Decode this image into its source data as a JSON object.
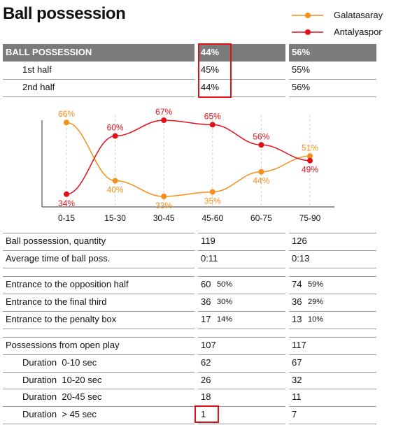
{
  "title": "Ball possession",
  "summary": {
    "header": [
      "BALL POSSESSION",
      "44%",
      "56%"
    ],
    "rows": [
      [
        "1st half",
        "45%",
        "55%"
      ],
      [
        "2nd half",
        "44%",
        "56%"
      ]
    ]
  },
  "chart_data": {
    "type": "line",
    "categories": [
      "0-15",
      "15-30",
      "30-45",
      "45-60",
      "60-75",
      "75-90"
    ],
    "series": [
      {
        "name": "Galatasaray",
        "color": "#f39019",
        "values": [
          66,
          40,
          33,
          35,
          44,
          51
        ],
        "value_labels": [
          "66%",
          "40%",
          "33%",
          "35%",
          "44%",
          "51%"
        ]
      },
      {
        "name": "Antalyaspor",
        "color": "#e3101a",
        "values": [
          34,
          60,
          67,
          65,
          56,
          49
        ],
        "value_labels": [
          "34%",
          "60%",
          "67%",
          "65%",
          "56%",
          "49%"
        ]
      }
    ]
  },
  "stats": {
    "groups": [
      {
        "rows": [
          [
            "Ball possession, quantity",
            "119",
            "126"
          ],
          [
            "Average time of ball poss.",
            "0:11",
            "0:13"
          ]
        ]
      },
      {
        "rows": [
          [
            "Entrance to the opposition half",
            "60",
            "50%",
            "74",
            "59%"
          ],
          [
            "Entrance to the final third",
            "36",
            "30%",
            "36",
            "29%"
          ],
          [
            "Entrance to the penalty box",
            "17",
            "14%",
            "13",
            "10%"
          ]
        ]
      },
      {
        "rows": [
          [
            "Possessions from open play",
            "107",
            "117"
          ],
          [
            "Duration  0-10 sec",
            "62",
            "67"
          ],
          [
            "Duration  10-20 sec",
            "26",
            "32"
          ],
          [
            "Duration  20-45 sec",
            "18",
            "11"
          ],
          [
            "Duration  > 45 sec",
            "1",
            "7"
          ]
        ]
      }
    ]
  }
}
